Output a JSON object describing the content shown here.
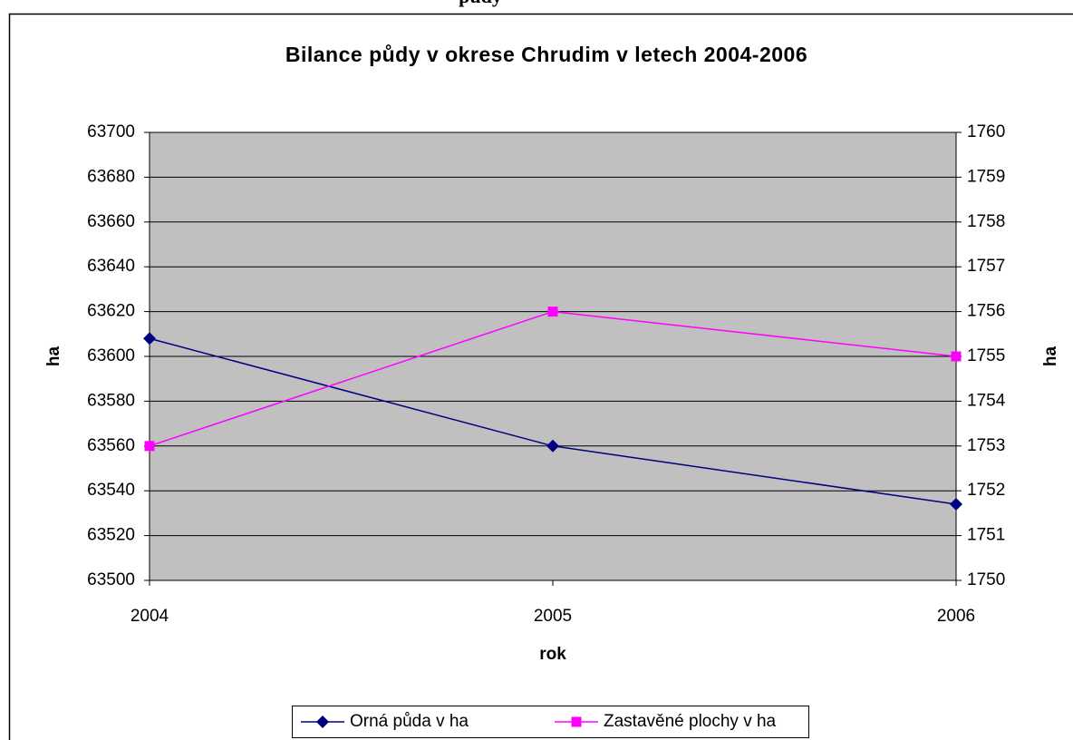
{
  "caption": "půdy",
  "chart_data": {
    "type": "line",
    "title": "Bilance půdy v okrese Chrudim v letech 2004-2006",
    "x_label": "rok",
    "y_label": "ha",
    "y2_label": "ha",
    "categories": [
      "2004",
      "2005",
      "2006"
    ],
    "series": [
      {
        "name": "Orná půda v ha",
        "color": "#000080",
        "marker": "diamond",
        "values": [
          63608,
          63560,
          63534
        ]
      },
      {
        "name": "Zastavěné plochy v ha",
        "color": "#ff00ff",
        "marker": "square",
        "axis": "y2",
        "values": [
          1753,
          1756,
          1755
        ]
      }
    ],
    "ylim": [
      63500,
      63700
    ],
    "yticks": [
      63500,
      63520,
      63540,
      63560,
      63580,
      63600,
      63620,
      63640,
      63660,
      63680,
      63700
    ],
    "y2lim": [
      1750,
      1760
    ],
    "y2ticks": [
      1750,
      1751,
      1752,
      1753,
      1754,
      1755,
      1756,
      1757,
      1758,
      1759,
      1760
    ],
    "grid": true,
    "legend": "bottom"
  }
}
